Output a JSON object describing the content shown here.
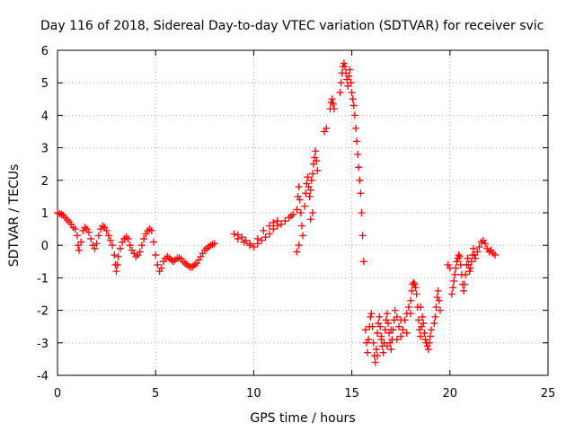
{
  "chart_data": {
    "type": "scatter",
    "title": "Day 116 of 2018, Sidereal Day-to-day VTEC variation (SDTVAR) for receiver svic",
    "xlabel": "GPS time / hours",
    "ylabel": "SDTVAR / TECUs",
    "xlim": [
      0,
      25
    ],
    "ylim": [
      -4,
      6
    ],
    "xticks": [
      0,
      5,
      10,
      15,
      20,
      25
    ],
    "yticks": [
      -4,
      -3,
      -2,
      -1,
      0,
      1,
      2,
      3,
      4,
      5,
      6
    ],
    "grid": true,
    "marker": "+",
    "series": [
      {
        "name": "SDTVAR",
        "color": "#ff0000",
        "points": [
          [
            0.0,
            1.0
          ],
          [
            0.1,
            0.97
          ],
          [
            0.2,
            0.95
          ],
          [
            0.3,
            0.92
          ],
          [
            0.4,
            0.85
          ],
          [
            0.5,
            0.78
          ],
          [
            0.6,
            0.72
          ],
          [
            0.7,
            0.65
          ],
          [
            0.8,
            0.55
          ],
          [
            0.9,
            0.5
          ],
          [
            1.0,
            0.3
          ],
          [
            1.05,
            0.0
          ],
          [
            1.1,
            -0.15
          ],
          [
            1.2,
            0.1
          ],
          [
            1.3,
            0.45
          ],
          [
            1.4,
            0.55
          ],
          [
            1.5,
            0.5
          ],
          [
            1.6,
            0.4
          ],
          [
            1.7,
            0.2
          ],
          [
            1.8,
            0.0
          ],
          [
            1.9,
            -0.1
          ],
          [
            2.0,
            0.05
          ],
          [
            2.1,
            0.3
          ],
          [
            2.2,
            0.5
          ],
          [
            2.3,
            0.6
          ],
          [
            2.4,
            0.55
          ],
          [
            2.5,
            0.45
          ],
          [
            2.6,
            0.3
          ],
          [
            2.7,
            0.15
          ],
          [
            2.8,
            0.0
          ],
          [
            2.9,
            -0.3
          ],
          [
            2.95,
            -0.6
          ],
          [
            3.0,
            -0.8
          ],
          [
            3.05,
            -0.6
          ],
          [
            3.1,
            -0.35
          ],
          [
            3.2,
            -0.1
          ],
          [
            3.3,
            0.1
          ],
          [
            3.4,
            0.2
          ],
          [
            3.5,
            0.25
          ],
          [
            3.6,
            0.2
          ],
          [
            3.7,
            0.0
          ],
          [
            3.8,
            -0.15
          ],
          [
            3.9,
            -0.25
          ],
          [
            4.0,
            -0.35
          ],
          [
            4.1,
            -0.3
          ],
          [
            4.2,
            -0.2
          ],
          [
            4.3,
            0.0
          ],
          [
            4.4,
            0.2
          ],
          [
            4.5,
            0.35
          ],
          [
            4.6,
            0.45
          ],
          [
            4.7,
            0.5
          ],
          [
            4.8,
            0.45
          ],
          [
            4.9,
            0.1
          ],
          [
            5.0,
            -0.3
          ],
          [
            5.1,
            -0.6
          ],
          [
            5.2,
            -0.8
          ],
          [
            5.3,
            -0.7
          ],
          [
            5.4,
            -0.5
          ],
          [
            5.5,
            -0.4
          ],
          [
            5.6,
            -0.35
          ],
          [
            5.7,
            -0.4
          ],
          [
            5.8,
            -0.45
          ],
          [
            5.9,
            -0.5
          ],
          [
            6.0,
            -0.45
          ],
          [
            6.1,
            -0.4
          ],
          [
            6.2,
            -0.38
          ],
          [
            6.3,
            -0.42
          ],
          [
            6.4,
            -0.5
          ],
          [
            6.5,
            -0.55
          ],
          [
            6.6,
            -0.6
          ],
          [
            6.7,
            -0.65
          ],
          [
            6.8,
            -0.67
          ],
          [
            6.9,
            -0.65
          ],
          [
            7.0,
            -0.6
          ],
          [
            7.1,
            -0.55
          ],
          [
            7.2,
            -0.45
          ],
          [
            7.3,
            -0.35
          ],
          [
            7.4,
            -0.25
          ],
          [
            7.5,
            -0.15
          ],
          [
            7.6,
            -0.1
          ],
          [
            7.7,
            -0.05
          ],
          [
            7.8,
            0.0
          ],
          [
            7.9,
            0.03
          ],
          [
            8.0,
            0.05
          ],
          [
            9.0,
            0.35
          ],
          [
            9.2,
            0.32
          ],
          [
            9.4,
            0.25
          ],
          [
            9.6,
            0.15
          ],
          [
            9.8,
            0.05
          ],
          [
            10.0,
            -0.05
          ],
          [
            10.2,
            0.05
          ],
          [
            10.4,
            0.15
          ],
          [
            10.6,
            0.25
          ],
          [
            10.8,
            0.35
          ],
          [
            11.0,
            0.5
          ],
          [
            11.2,
            0.6
          ],
          [
            11.4,
            0.65
          ],
          [
            11.6,
            0.75
          ],
          [
            11.8,
            0.85
          ],
          [
            11.9,
            0.9
          ],
          [
            12.0,
            0.95
          ],
          [
            9.2,
            0.2
          ],
          [
            9.5,
            0.1
          ],
          [
            9.8,
            0.0
          ],
          [
            10.2,
            0.2
          ],
          [
            10.5,
            0.45
          ],
          [
            10.8,
            0.6
          ],
          [
            11.0,
            0.7
          ],
          [
            11.2,
            0.75
          ],
          [
            12.2,
            1.1
          ],
          [
            12.25,
            1.5
          ],
          [
            12.3,
            1.8
          ],
          [
            12.35,
            1.4
          ],
          [
            12.4,
            1.0
          ],
          [
            12.45,
            0.6
          ],
          [
            12.5,
            0.3
          ],
          [
            12.3,
            0.0
          ],
          [
            12.2,
            -0.2
          ],
          [
            12.6,
            1.2
          ],
          [
            12.65,
            1.6
          ],
          [
            12.7,
            1.9
          ],
          [
            12.75,
            2.1
          ],
          [
            12.8,
            1.8
          ],
          [
            12.85,
            1.5
          ],
          [
            12.9,
            1.7
          ],
          [
            12.95,
            2.0
          ],
          [
            13.0,
            2.2
          ],
          [
            13.05,
            2.5
          ],
          [
            13.1,
            2.7
          ],
          [
            13.15,
            2.9
          ],
          [
            13.2,
            2.6
          ],
          [
            13.25,
            2.3
          ],
          [
            13.0,
            1.0
          ],
          [
            12.9,
            0.8
          ],
          [
            13.6,
            3.5
          ],
          [
            13.7,
            3.6
          ],
          [
            13.9,
            4.2
          ],
          [
            13.95,
            4.4
          ],
          [
            14.0,
            4.5
          ],
          [
            14.05,
            4.35
          ],
          [
            14.1,
            4.2
          ],
          [
            14.4,
            4.7
          ],
          [
            14.45,
            5.0
          ],
          [
            14.5,
            5.3
          ],
          [
            14.55,
            5.5
          ],
          [
            14.6,
            5.6
          ],
          [
            14.65,
            5.5
          ],
          [
            14.7,
            5.3
          ],
          [
            14.75,
            5.1
          ],
          [
            14.8,
            4.9
          ],
          [
            14.85,
            5.2
          ],
          [
            14.9,
            5.4
          ],
          [
            14.95,
            5.0
          ],
          [
            15.0,
            4.7
          ],
          [
            15.05,
            4.5
          ],
          [
            15.1,
            4.3
          ],
          [
            15.15,
            4.0
          ],
          [
            15.2,
            3.6
          ],
          [
            15.25,
            3.2
          ],
          [
            15.3,
            2.8
          ],
          [
            15.35,
            2.4
          ],
          [
            15.4,
            2.0
          ],
          [
            15.45,
            1.6
          ],
          [
            15.5,
            1.0
          ],
          [
            15.55,
            0.3
          ],
          [
            15.6,
            -0.5
          ],
          [
            15.7,
            -2.6
          ],
          [
            15.75,
            -3.0
          ],
          [
            15.8,
            -3.3
          ],
          [
            15.85,
            -2.9
          ],
          [
            15.9,
            -2.5
          ],
          [
            15.95,
            -2.2
          ],
          [
            16.0,
            -2.1
          ],
          [
            16.05,
            -2.5
          ],
          [
            16.1,
            -3.0
          ],
          [
            16.15,
            -3.4
          ],
          [
            16.2,
            -3.6
          ],
          [
            16.25,
            -3.2
          ],
          [
            16.3,
            -2.7
          ],
          [
            16.35,
            -2.4
          ],
          [
            16.4,
            -2.2
          ],
          [
            16.45,
            -2.5
          ],
          [
            16.5,
            -2.8
          ],
          [
            16.55,
            -3.1
          ],
          [
            16.6,
            -3.3
          ],
          [
            16.65,
            -3.0
          ],
          [
            16.7,
            -2.6
          ],
          [
            16.75,
            -2.3
          ],
          [
            16.8,
            -2.1
          ],
          [
            16.85,
            -2.4
          ],
          [
            16.9,
            -2.7
          ],
          [
            16.95,
            -3.0
          ],
          [
            17.0,
            -3.2
          ],
          [
            17.05,
            -2.9
          ],
          [
            17.1,
            -2.6
          ],
          [
            17.15,
            -2.3
          ],
          [
            17.2,
            -2.0
          ],
          [
            17.3,
            -2.2
          ],
          [
            17.4,
            -2.5
          ],
          [
            17.5,
            -2.8
          ],
          [
            17.6,
            -2.6
          ],
          [
            17.7,
            -2.3
          ],
          [
            17.8,
            -2.1
          ],
          [
            17.9,
            -1.9
          ],
          [
            18.0,
            -1.7
          ],
          [
            18.05,
            -1.4
          ],
          [
            18.1,
            -1.2
          ],
          [
            18.15,
            -1.15
          ],
          [
            18.2,
            -1.2
          ],
          [
            18.25,
            -1.3
          ],
          [
            18.3,
            -1.5
          ],
          [
            18.35,
            -1.9
          ],
          [
            18.4,
            -2.3
          ],
          [
            18.45,
            -2.6
          ],
          [
            18.5,
            -2.8
          ],
          [
            18.55,
            -2.5
          ],
          [
            18.6,
            -2.2
          ],
          [
            18.65,
            -2.4
          ],
          [
            18.7,
            -2.7
          ],
          [
            18.75,
            -2.9
          ],
          [
            18.8,
            -3.0
          ],
          [
            18.85,
            -3.1
          ],
          [
            18.9,
            -3.2
          ],
          [
            18.95,
            -3.0
          ],
          [
            19.0,
            -2.8
          ],
          [
            19.05,
            -2.6
          ],
          [
            16.5,
            -2.9
          ],
          [
            17.0,
            -2.6
          ],
          [
            17.5,
            -2.3
          ],
          [
            18.0,
            -2.1
          ],
          [
            18.5,
            -1.9
          ],
          [
            16.3,
            -3.4
          ],
          [
            16.8,
            -3.1
          ],
          [
            17.3,
            -2.9
          ],
          [
            17.8,
            -2.7
          ],
          [
            19.2,
            -2.4
          ],
          [
            19.25,
            -2.2
          ],
          [
            19.3,
            -1.9
          ],
          [
            19.35,
            -1.6
          ],
          [
            19.4,
            -1.4
          ],
          [
            19.45,
            -1.7
          ],
          [
            19.5,
            -2.0
          ],
          [
            20.1,
            -1.5
          ],
          [
            20.15,
            -1.3
          ],
          [
            20.2,
            -1.1
          ],
          [
            20.25,
            -0.9
          ],
          [
            20.3,
            -0.7
          ],
          [
            20.35,
            -0.5
          ],
          [
            20.4,
            -0.4
          ],
          [
            20.45,
            -0.3
          ],
          [
            20.5,
            -0.35
          ],
          [
            20.55,
            -0.6
          ],
          [
            20.6,
            -0.9
          ],
          [
            20.65,
            -1.2
          ],
          [
            20.7,
            -1.4
          ],
          [
            20.75,
            -1.2
          ],
          [
            20.8,
            -0.9
          ],
          [
            20.85,
            -0.6
          ],
          [
            20.9,
            -0.4
          ],
          [
            20.95,
            -0.6
          ],
          [
            21.0,
            -0.8
          ],
          [
            21.05,
            -0.7
          ],
          [
            21.1,
            -0.5
          ],
          [
            21.15,
            -0.3
          ],
          [
            21.2,
            -0.1
          ],
          [
            21.25,
            -0.3
          ],
          [
            21.3,
            -0.4
          ],
          [
            21.4,
            -0.2
          ],
          [
            21.5,
            -0.05
          ],
          [
            21.6,
            0.1
          ],
          [
            21.7,
            0.15
          ],
          [
            21.8,
            0.05
          ],
          [
            21.9,
            -0.1
          ],
          [
            22.0,
            -0.2
          ],
          [
            22.1,
            -0.15
          ],
          [
            22.2,
            -0.25
          ],
          [
            22.3,
            -0.3
          ],
          [
            19.9,
            -0.6
          ],
          [
            20.0,
            -0.7
          ]
        ]
      }
    ]
  }
}
